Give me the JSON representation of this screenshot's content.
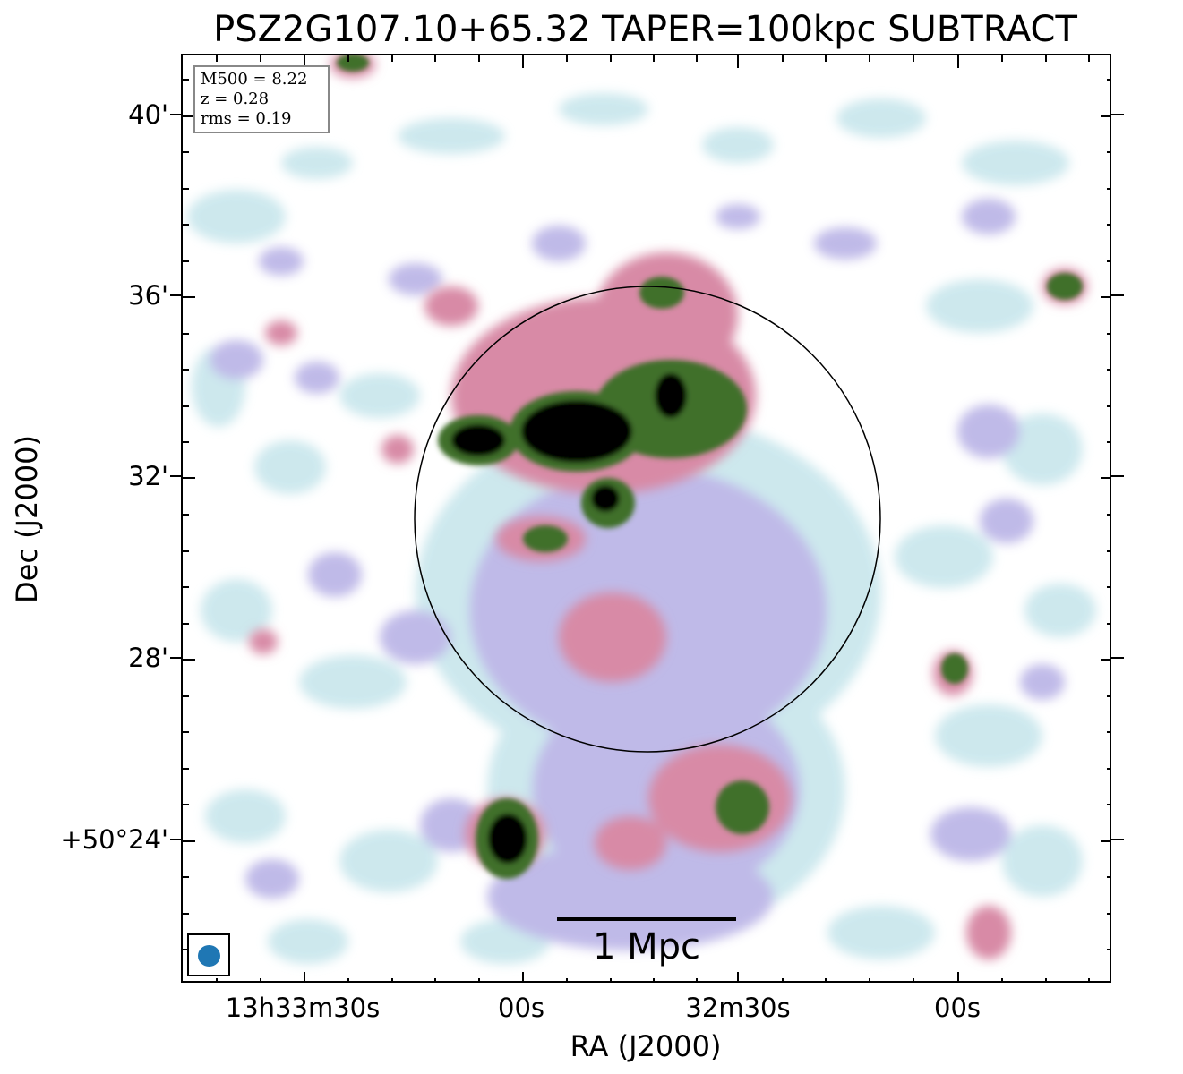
{
  "title": "PSZ2G107.10+65.32 TAPER=100kpc SUBTRACT",
  "axes": {
    "ylabel": "Dec (J2000)",
    "xlabel": "RA (J2000)",
    "yticks": [
      "40'",
      "36'",
      "32'",
      "28'",
      "+50°24'"
    ],
    "xticks": [
      "13h33m30s",
      "00s",
      "32m30s",
      "00s"
    ]
  },
  "info": {
    "m500": "M500 = 8.22",
    "z": "z = 0.28",
    "rms": "rms = 0.19"
  },
  "scalebar": {
    "label": "1 Mpc"
  },
  "colors": {
    "low": "#c8e6ec",
    "lavender": "#b9b3e6",
    "pink": "#d88aa6",
    "green": "#3f6f2a",
    "peak": "#000000",
    "beam": "#1f77b4"
  },
  "image_description_icons": [
    "beam-ellipse-icon"
  ]
}
